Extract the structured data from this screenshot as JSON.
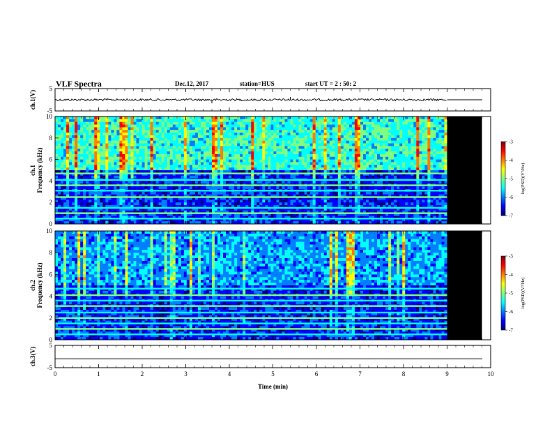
{
  "header": {
    "title": "VLF Spectra",
    "date": "Dec.12, 2017",
    "station": "station=HUS",
    "start_ut": "start  UT =  2 : 50: 2"
  },
  "colors": {
    "colormap": [
      "#00007f",
      "#0000ff",
      "#007fff",
      "#00ffff",
      "#7fff7f",
      "#ffff00",
      "#ff7f00",
      "#ff0000",
      "#7f0000"
    ],
    "no_data": "#000000",
    "waveform": "#000000"
  },
  "chart_data": [
    {
      "type": "line",
      "name": "ch1-waveform",
      "ylabel": "ch.1(V)",
      "ylim": [
        -5,
        5
      ],
      "yticks": [
        "5",
        "-5"
      ],
      "xlim": [
        0,
        10
      ],
      "baseline_v": 0.0,
      "data_end_min": 9.0,
      "spikes": [
        {
          "x": 3.6,
          "y": -1.6
        },
        {
          "x": 5.4,
          "y": 1.2
        }
      ]
    },
    {
      "type": "heatmap",
      "name": "ch1-spectrogram",
      "ylabel_top": "ch.1",
      "ylabel": "Frequency  (kHz)",
      "ylim": [
        0,
        10
      ],
      "yticks": [
        "0",
        "2",
        "4",
        "6",
        "8",
        "10"
      ],
      "xlim": [
        0,
        10
      ],
      "data_end_min": 9.0,
      "no_data_end_min": 9.8,
      "colorbar": {
        "label": "log(PSD)(V²/Hz)",
        "ticks": [
          "-3",
          "-4",
          "-5",
          "-6",
          "-7"
        ],
        "range": [
          -7,
          -3
        ]
      },
      "bands_khz": [
        0.5,
        1.0,
        1.5,
        2.5,
        3.1,
        3.6,
        4.1,
        4.7
      ]
    },
    {
      "type": "heatmap",
      "name": "ch2-spectrogram",
      "ylabel_top": "ch.2",
      "ylabel": "Frequency  (kHz)",
      "ylim": [
        0,
        10
      ],
      "yticks": [
        "0",
        "2",
        "4",
        "6",
        "8",
        "10"
      ],
      "xlim": [
        0,
        10
      ],
      "data_end_min": 9.0,
      "no_data_end_min": 9.8,
      "colorbar": {
        "label": "log(PSD)(V²/Hz)",
        "ticks": [
          "-3",
          "-4",
          "-5",
          "-6",
          "-7"
        ],
        "range": [
          -7,
          -3
        ]
      },
      "bands_khz": [
        0.5,
        1.0,
        1.5,
        2.0,
        2.5,
        3.1,
        3.6,
        4.1,
        4.7
      ]
    },
    {
      "type": "line",
      "name": "ch3-waveform",
      "ylabel": "ch.3(V)",
      "ylim": [
        -5,
        5
      ],
      "yticks": [
        "5",
        "-5"
      ],
      "xlim": [
        0,
        10
      ],
      "baseline_v": -1.0,
      "data_end_min": 9.0
    }
  ],
  "xaxis": {
    "label": "Time  (min)",
    "ticks": [
      "0",
      "1",
      "2",
      "3",
      "4",
      "5",
      "6",
      "7",
      "8",
      "9",
      "10"
    ]
  }
}
